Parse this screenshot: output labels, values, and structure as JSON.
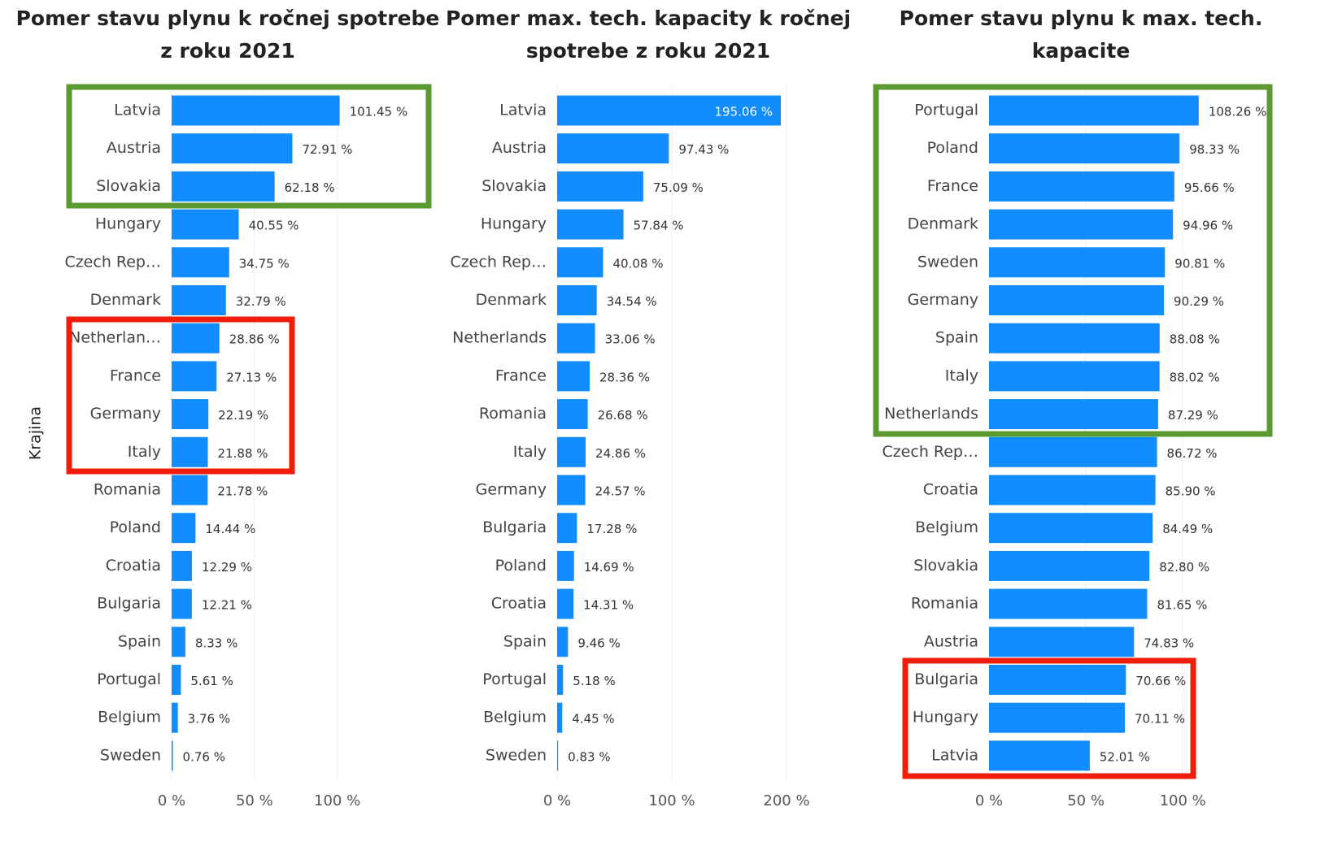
{
  "chart_data": [
    {
      "type": "bar",
      "orientation": "horizontal",
      "title": [
        "Pomer stavu plynu k ročnej spotrebe",
        "z roku 2021"
      ],
      "y_label": "Krajina",
      "categories": [
        "Latvia",
        "Austria",
        "Slovakia",
        "Hungary",
        "Czech Rep…",
        "Denmark",
        "Netherlan…",
        "France",
        "Germany",
        "Italy",
        "Romania",
        "Poland",
        "Croatia",
        "Bulgaria",
        "Spain",
        "Portugal",
        "Belgium",
        "Sweden"
      ],
      "values": [
        101.45,
        72.91,
        62.18,
        40.55,
        34.75,
        32.79,
        28.86,
        27.13,
        22.19,
        21.88,
        21.78,
        14.44,
        12.29,
        12.21,
        8.33,
        5.61,
        3.76,
        0.76
      ],
      "value_labels": [
        "101.45 %",
        "72.91 %",
        "62.18 %",
        "40.55 %",
        "34.75 %",
        "32.79 %",
        "28.86 %",
        "27.13 %",
        "22.19 %",
        "21.88 %",
        "21.78 %",
        "14.44 %",
        "12.29 %",
        "12.21 %",
        "8.33 %",
        "5.61 %",
        "3.76 %",
        "0.76 %"
      ],
      "color": "#118dff",
      "xlim": [
        0,
        110
      ],
      "xticks": [
        {
          "value": 0,
          "label": "0 %"
        },
        {
          "value": 50,
          "label": "50 %"
        },
        {
          "value": 100,
          "label": "100 %"
        }
      ],
      "grid": true
    },
    {
      "type": "bar",
      "orientation": "horizontal",
      "title": [
        "Pomer max. tech. kapacity k ročnej",
        "spotrebe z roku 2021"
      ],
      "categories": [
        "Latvia",
        "Austria",
        "Slovakia",
        "Hungary",
        "Czech Rep…",
        "Denmark",
        "Netherlands",
        "France",
        "Romania",
        "Italy",
        "Germany",
        "Bulgaria",
        "Poland",
        "Croatia",
        "Spain",
        "Portugal",
        "Belgium",
        "Sweden"
      ],
      "values": [
        195.06,
        97.43,
        75.09,
        57.84,
        40.08,
        34.54,
        33.06,
        28.36,
        26.68,
        24.86,
        24.57,
        17.28,
        14.69,
        14.31,
        9.46,
        5.18,
        4.45,
        0.83
      ],
      "value_labels": [
        "195.06 %",
        "97.43 %",
        "75.09 %",
        "57.84 %",
        "40.08 %",
        "34.54 %",
        "33.06 %",
        "28.36 %",
        "26.68 %",
        "24.86 %",
        "24.57 %",
        "17.28 %",
        "14.69 %",
        "14.31 %",
        "9.46 %",
        "5.18 %",
        "4.45 %",
        "0.83 %"
      ],
      "color": "#118dff",
      "xlim": [
        0,
        200
      ],
      "xticks": [
        {
          "value": 0,
          "label": "0 %"
        },
        {
          "value": 100,
          "label": "100 %"
        },
        {
          "value": 200,
          "label": "200 %"
        }
      ],
      "grid": true
    },
    {
      "type": "bar",
      "orientation": "horizontal",
      "title": [
        "Pomer stavu plynu k max. tech.",
        "kapacite"
      ],
      "categories": [
        "Portugal",
        "Poland",
        "France",
        "Denmark",
        "Sweden",
        "Germany",
        "Spain",
        "Italy",
        "Netherlands",
        "Czech Rep…",
        "Croatia",
        "Belgium",
        "Slovakia",
        "Romania",
        "Austria",
        "Bulgaria",
        "Hungary",
        "Latvia"
      ],
      "values": [
        108.26,
        98.33,
        95.66,
        94.96,
        90.81,
        90.29,
        88.08,
        88.02,
        87.29,
        86.72,
        85.9,
        84.49,
        82.8,
        81.65,
        74.83,
        70.66,
        70.11,
        52.01
      ],
      "value_labels": [
        "108.26 %",
        "98.33 %",
        "95.66 %",
        "94.96 %",
        "90.81 %",
        "90.29 %",
        "88.08 %",
        "88.02 %",
        "87.29 %",
        "86.72 %",
        "85.90 %",
        "84.49 %",
        "82.80 %",
        "81.65 %",
        "74.83 %",
        "70.66 %",
        "70.11 %",
        "52.01 %"
      ],
      "color": "#118dff",
      "xlim": [
        0,
        110
      ],
      "xticks": [
        {
          "value": 0,
          "label": "0 %"
        },
        {
          "value": 50,
          "label": "50 %"
        },
        {
          "value": 100,
          "label": "100 %"
        }
      ],
      "grid": true
    }
  ]
}
